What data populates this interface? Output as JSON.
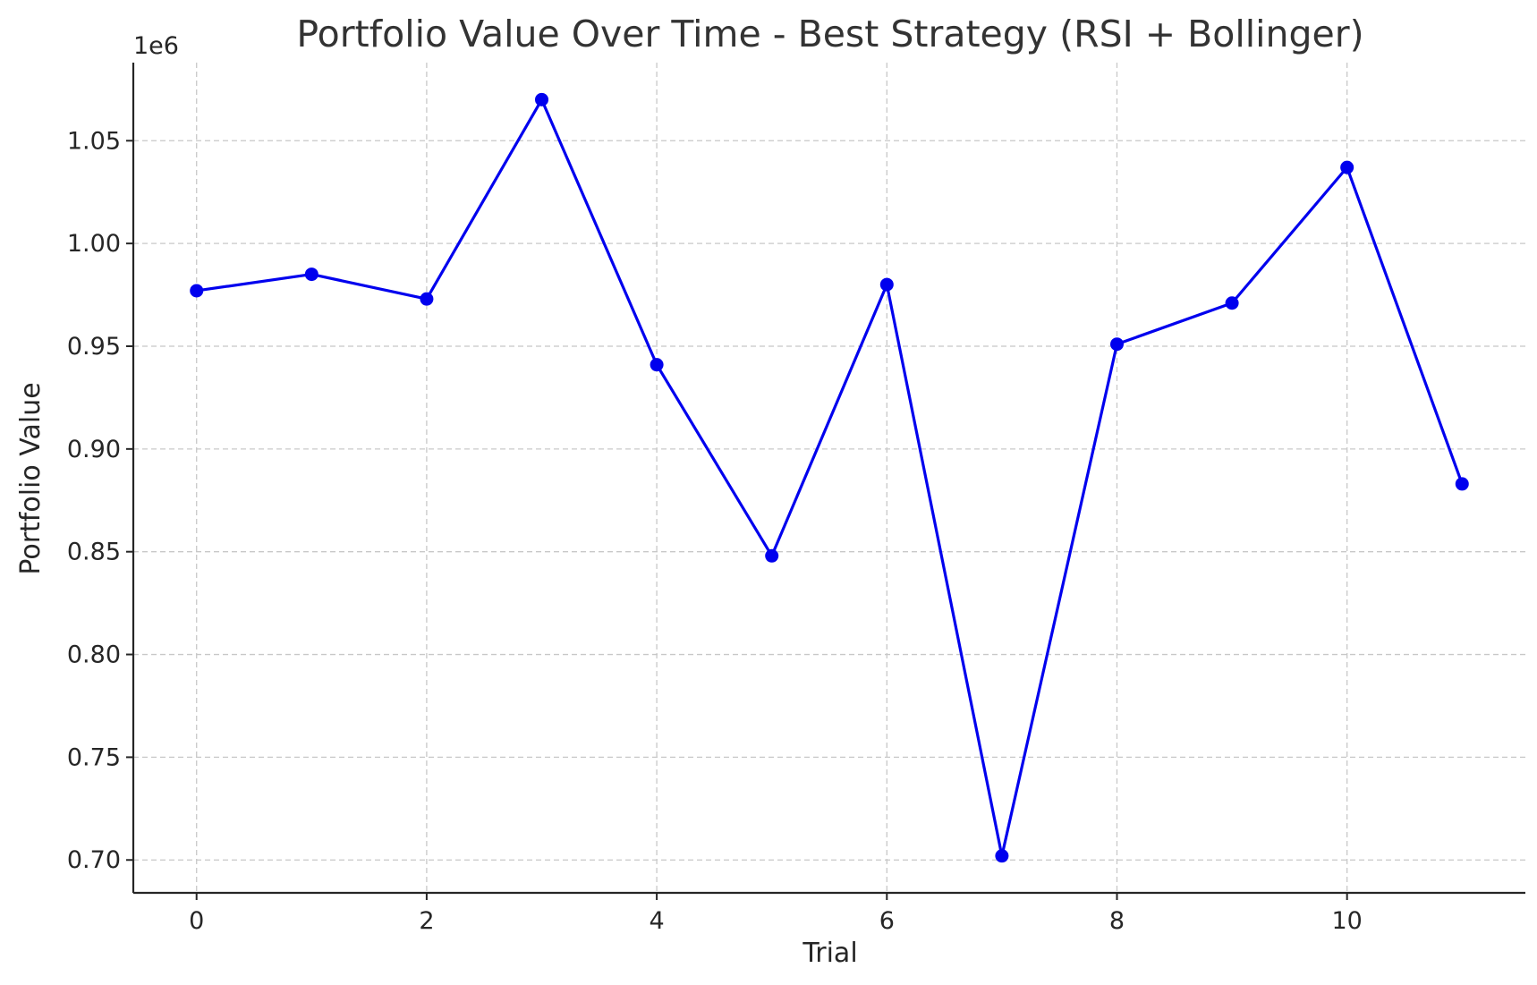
{
  "chart_data": {
    "type": "line",
    "title": "Portfolio Value Over Time - Best Strategy (RSI + Bollinger)",
    "xlabel": "Trial",
    "ylabel": "Portfolio Value",
    "y_offset_label": "1e6",
    "xlim": [
      -0.55,
      11.55
    ],
    "ylim": [
      0.684,
      1.088
    ],
    "x_ticks": [
      0,
      2,
      4,
      6,
      8,
      10
    ],
    "x_tick_labels": [
      "0",
      "2",
      "4",
      "6",
      "8",
      "10"
    ],
    "y_ticks": [
      0.7,
      0.75,
      0.8,
      0.85,
      0.9,
      0.95,
      1.0,
      1.05
    ],
    "y_tick_labels": [
      "0.70",
      "0.75",
      "0.80",
      "0.85",
      "0.90",
      "0.95",
      "1.00",
      "1.05"
    ],
    "grid": true,
    "series": [
      {
        "color": "#0000ee",
        "marker": "circle",
        "x": [
          0,
          1,
          2,
          3,
          4,
          5,
          6,
          7,
          8,
          9,
          10,
          11
        ],
        "y": [
          0.977,
          0.985,
          0.973,
          1.07,
          0.941,
          0.848,
          0.98,
          0.702,
          0.951,
          0.971,
          1.037,
          0.883
        ]
      }
    ]
  }
}
